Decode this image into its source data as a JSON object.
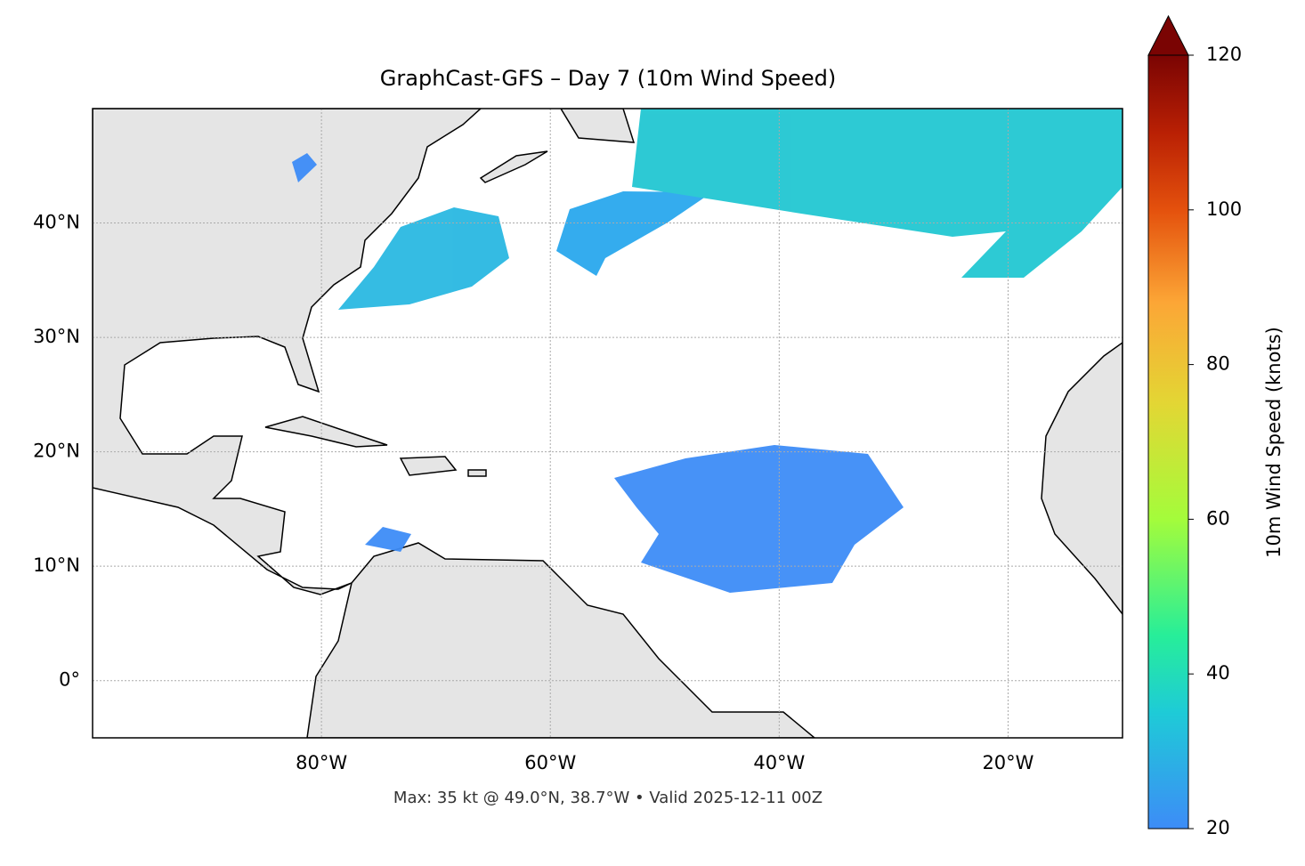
{
  "chart_data": {
    "type": "map",
    "title": "GraphCast-GFS – Day 7 (10m Wind Speed)",
    "footer": "Max: 35 kt @ 49.0°N, 38.7°W • Valid 2025-12-11 00Z",
    "xlim": [
      -100,
      -10
    ],
    "ylim": [
      -5,
      50
    ],
    "xticks": [
      {
        "value": -80,
        "label": "80°W"
      },
      {
        "value": -60,
        "label": "60°W"
      },
      {
        "value": -40,
        "label": "40°W"
      },
      {
        "value": -20,
        "label": "20°W"
      }
    ],
    "yticks": [
      {
        "value": 0,
        "label": "0°"
      },
      {
        "value": 10,
        "label": "10°N"
      },
      {
        "value": 20,
        "label": "20°N"
      },
      {
        "value": 30,
        "label": "30°N"
      },
      {
        "value": 40,
        "label": "40°N"
      }
    ],
    "grid": true,
    "colorbar": {
      "label": "10m Wind Speed (knots)",
      "lim": [
        20,
        120
      ],
      "ticks": [
        20,
        40,
        60,
        80,
        100,
        120
      ],
      "extend": "max"
    }
  }
}
